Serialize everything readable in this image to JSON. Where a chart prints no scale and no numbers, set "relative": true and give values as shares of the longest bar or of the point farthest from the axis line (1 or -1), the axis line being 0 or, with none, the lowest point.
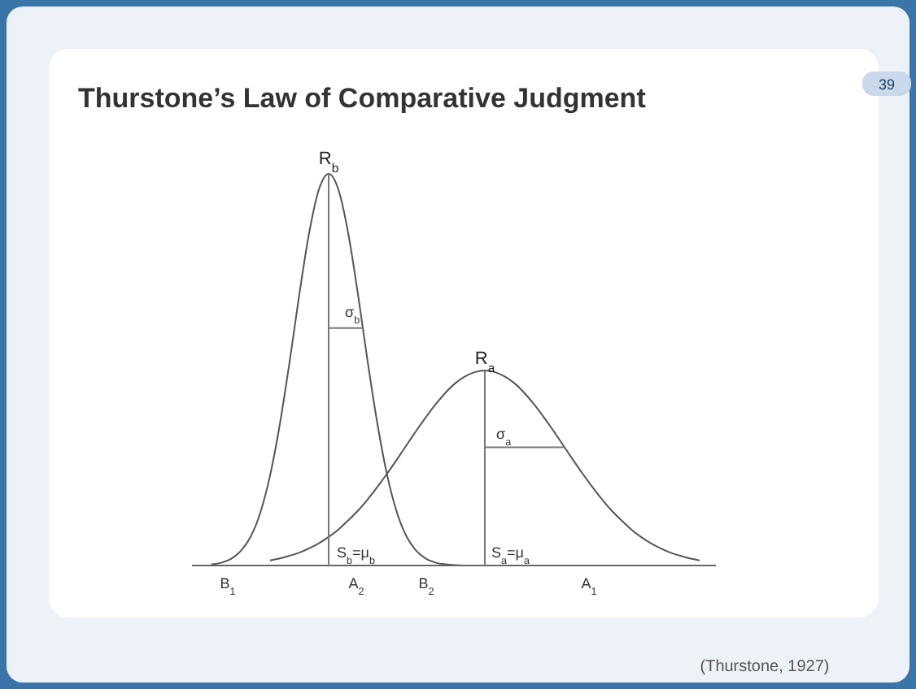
{
  "chart_data": {
    "type": "line",
    "title": "Thurstone’s Law of Comparative Judgment",
    "relative": true,
    "line_style": "solid",
    "categories": [
      null,
      null,
      null,
      null,
      null,
      null,
      null,
      null,
      null,
      null,
      null,
      null,
      null,
      null,
      null,
      null,
      null,
      null,
      null,
      null,
      null,
      null,
      null,
      null,
      null,
      null,
      null,
      null,
      null,
      null,
      null,
      null,
      null,
      null,
      null,
      null,
      null,
      null,
      null,
      null,
      null,
      null,
      null,
      null,
      null,
      null,
      null,
      null,
      null,
      null,
      null
    ],
    "series": [
      {
        "color": "#555555",
        "values": [
          0.003,
          0.007,
          0.017,
          0.037,
          0.073,
          0.135,
          0.23,
          0.361,
          0.52,
          0.693,
          0.849,
          0.96,
          1,
          0.96,
          0.849,
          0.693,
          0.52,
          0.361,
          0.23,
          0.135,
          0.073,
          0.037,
          0.017,
          0.007,
          0.003,
          0.001,
          0,
          0,
          0,
          null,
          null,
          null,
          null,
          null,
          null,
          null,
          null,
          null,
          null,
          null,
          null,
          null,
          null,
          null,
          null,
          null,
          null,
          null,
          null,
          null,
          null
        ]
      },
      {
        "color": "#555555",
        "values": [
          null,
          null,
          null,
          null,
          null,
          null,
          0.013,
          0.018,
          0.025,
          0.033,
          0.044,
          0.057,
          0.073,
          0.092,
          0.115,
          0.14,
          0.169,
          0.201,
          0.235,
          0.271,
          0.308,
          0.345,
          0.38,
          0.413,
          0.442,
          0.466,
          0.483,
          0.494,
          0.498,
          0.494,
          0.483,
          0.466,
          0.442,
          0.413,
          0.38,
          0.345,
          0.308,
          0.271,
          0.235,
          0.201,
          0.169,
          0.14,
          0.115,
          0.092,
          0.073,
          0.057,
          0.044,
          0.033,
          0.025,
          0.018,
          0.013
        ]
      }
    ],
    "annotations": [
      "R$_{b}$",
      "σ$_{b}$",
      "S$_{b}$=μ$_{b}$",
      "R$_{a}$",
      "σ$_{a}$",
      "S$_{a}$=μ$_{a}$",
      "B$_{1}$",
      "A$_{2}$",
      "B$_{2}$",
      "A$_{1}$",
      "39",
      "(Thurstone, 1927)"
    ]
  }
}
